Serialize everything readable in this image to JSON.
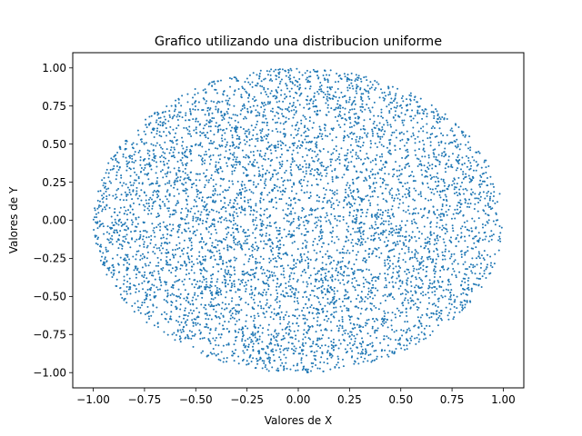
{
  "chart_data": {
    "type": "scatter",
    "title": "Grafico utilizando una distribucion uniforme",
    "xlabel": "Valores de X",
    "ylabel": "Valores de Y",
    "xlim": [
      -1.1,
      1.1
    ],
    "ylim": [
      -1.1,
      1.1
    ],
    "xticks": [
      -1.0,
      -0.75,
      -0.5,
      -0.25,
      0.0,
      0.25,
      0.5,
      0.75,
      1.0
    ],
    "xtick_labels": [
      "−1.00",
      "−0.75",
      "−0.50",
      "−0.25",
      "0.00",
      "0.25",
      "0.50",
      "0.75",
      "1.00"
    ],
    "yticks": [
      -1.0,
      -0.75,
      -0.5,
      -0.25,
      0.0,
      0.25,
      0.5,
      0.75,
      1.0
    ],
    "ytick_labels": [
      "−1.00",
      "−0.75",
      "−0.50",
      "−0.25",
      "0.00",
      "0.25",
      "0.50",
      "0.75",
      "1.00"
    ],
    "grid": false,
    "series": [
      {
        "color": "#1f77b4",
        "distribution": "uniform inside unit circle (x² + y² ≤ 1)",
        "approx_point_count": 6000
      }
    ]
  }
}
